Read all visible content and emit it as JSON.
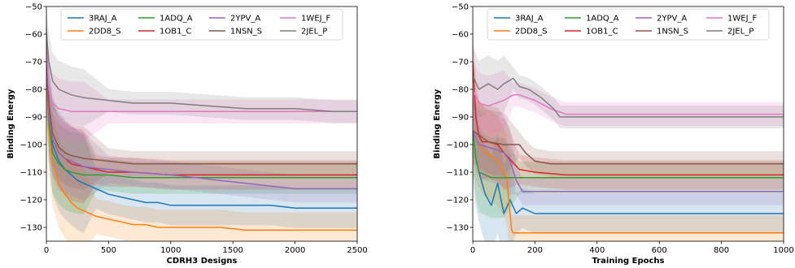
{
  "chart_data": [
    {
      "type": "line",
      "xlabel": "CDRH3 Designs",
      "ylabel": "Binding Energy",
      "xlim": [
        0,
        2500
      ],
      "ylim": [
        -135,
        -50
      ],
      "xticks": [
        0,
        500,
        1000,
        1500,
        2000,
        2500
      ],
      "yticks": [
        -130,
        -120,
        -110,
        -100,
        -90,
        -80,
        -70,
        -60,
        -50
      ],
      "grid": false,
      "legend_position": "top",
      "series": [
        {
          "name": "3RAJ_A",
          "color": "#1f77b4",
          "x": [
            0,
            20,
            50,
            100,
            150,
            200,
            250,
            300,
            400,
            500,
            600,
            700,
            800,
            900,
            1000,
            1200,
            1400,
            1600,
            1800,
            2000,
            2200,
            2500
          ],
          "y": [
            -70,
            -88,
            -100,
            -106,
            -109,
            -111,
            -113,
            -114,
            -116,
            -118,
            -119,
            -120,
            -121,
            -121,
            -122,
            -122,
            -122,
            -122,
            -122,
            -123,
            -123,
            -123
          ]
        },
        {
          "name": "2DD8_S",
          "color": "#ff7f0e",
          "x": [
            0,
            20,
            50,
            100,
            150,
            200,
            250,
            300,
            400,
            500,
            600,
            700,
            800,
            900,
            1000,
            1200,
            1400,
            1600,
            1800,
            2000,
            2200,
            2500
          ],
          "y": [
            -75,
            -95,
            -106,
            -114,
            -118,
            -121,
            -123,
            -124,
            -126,
            -127,
            -128,
            -129,
            -129,
            -130,
            -130,
            -130,
            -130,
            -131,
            -131,
            -131,
            -131,
            -131
          ]
        },
        {
          "name": "1ADQ_A",
          "color": "#2ca02c",
          "x": [
            0,
            20,
            50,
            100,
            150,
            200,
            300,
            400,
            500,
            700,
            1000,
            1500,
            2000,
            2500
          ],
          "y": [
            -70,
            -92,
            -103,
            -107,
            -109,
            -110,
            -111,
            -111,
            -111,
            -112,
            -112,
            -112,
            -112,
            -112
          ]
        },
        {
          "name": "1OB1_C",
          "color": "#d62728",
          "x": [
            0,
            20,
            50,
            100,
            150,
            200,
            300,
            400,
            500,
            700,
            1000,
            1500,
            2000,
            2500
          ],
          "y": [
            -65,
            -90,
            -98,
            -103,
            -105,
            -107,
            -108,
            -109,
            -110,
            -110,
            -111,
            -111,
            -111,
            -111
          ]
        },
        {
          "name": "2YPV_A",
          "color": "#9467bd",
          "x": [
            0,
            20,
            50,
            100,
            150,
            200,
            300,
            500,
            700,
            1000,
            1200,
            1400,
            1600,
            1800,
            2000,
            2200,
            2500
          ],
          "y": [
            -70,
            -90,
            -98,
            -103,
            -105,
            -106,
            -108,
            -109,
            -110,
            -111,
            -112,
            -113,
            -114,
            -115,
            -116,
            -116,
            -116
          ]
        },
        {
          "name": "1NSN_S",
          "color": "#8c564b",
          "x": [
            0,
            20,
            50,
            100,
            150,
            200,
            300,
            500,
            700,
            1000,
            1500,
            2000,
            2500
          ],
          "y": [
            -65,
            -85,
            -96,
            -101,
            -103,
            -104,
            -105,
            -106,
            -107,
            -107,
            -107,
            -107,
            -107
          ]
        },
        {
          "name": "1WEJ_F",
          "color": "#e377c2",
          "x": [
            0,
            20,
            50,
            100,
            200,
            300,
            500,
            700,
            1000,
            1500,
            2000,
            2500
          ],
          "y": [
            -65,
            -80,
            -85,
            -87,
            -88,
            -88,
            -88,
            -88,
            -88,
            -88,
            -88,
            -88
          ]
        },
        {
          "name": "2JEL_P",
          "color": "#7f7f7f",
          "x": [
            0,
            20,
            50,
            100,
            200,
            300,
            500,
            700,
            1000,
            1300,
            1600,
            2000,
            2300,
            2500
          ],
          "y": [
            -60,
            -70,
            -77,
            -80,
            -82,
            -83,
            -84,
            -85,
            -85,
            -86,
            -87,
            -87,
            -88,
            -88
          ]
        }
      ]
    },
    {
      "type": "line",
      "xlabel": "Training Epochs",
      "ylabel": "Binding Energy",
      "xlim": [
        0,
        1000
      ],
      "ylim": [
        -135,
        -50
      ],
      "xticks": [
        0,
        200,
        400,
        600,
        800,
        1000
      ],
      "yticks": [
        -130,
        -120,
        -110,
        -100,
        -90,
        -80,
        -70,
        -60,
        -50
      ],
      "grid": false,
      "legend_position": "top",
      "series": [
        {
          "name": "3RAJ_A",
          "color": "#1f77b4",
          "x": [
            0,
            10,
            20,
            40,
            60,
            80,
            100,
            120,
            140,
            160,
            200,
            300,
            400,
            600,
            800,
            1000
          ],
          "y": [
            -95,
            -105,
            -110,
            -118,
            -122,
            -114,
            -125,
            -120,
            -125,
            -123,
            -125,
            -125,
            -125,
            -125,
            -125,
            -125
          ]
        },
        {
          "name": "2DD8_S",
          "color": "#ff7f0e",
          "x": [
            0,
            20,
            40,
            60,
            80,
            100,
            110,
            120,
            125,
            130,
            200,
            400,
            600,
            800,
            1000
          ],
          "y": [
            -95,
            -100,
            -103,
            -104,
            -106,
            -110,
            -113,
            -125,
            -131,
            -132,
            -132,
            -132,
            -132,
            -132,
            -132
          ]
        },
        {
          "name": "1ADQ_A",
          "color": "#2ca02c",
          "x": [
            0,
            10,
            20,
            40,
            60,
            100,
            150,
            200,
            300,
            400,
            600,
            800,
            1000
          ],
          "y": [
            -95,
            -105,
            -110,
            -111,
            -112,
            -112,
            -112,
            -112,
            -112,
            -112,
            -112,
            -112,
            -112
          ]
        },
        {
          "name": "1OB1_C",
          "color": "#d62728",
          "x": [
            0,
            10,
            20,
            30,
            50,
            80,
            100,
            150,
            200,
            300,
            400,
            600,
            800,
            1000
          ],
          "y": [
            -70,
            -90,
            -97,
            -99,
            -99,
            -100,
            -103,
            -109,
            -110,
            -111,
            -111,
            -111,
            -111,
            -111
          ]
        },
        {
          "name": "2YPV_A",
          "color": "#9467bd",
          "x": [
            0,
            20,
            50,
            80,
            100,
            120,
            140,
            160,
            200,
            400,
            600,
            800,
            1000
          ],
          "y": [
            -95,
            -100,
            -101,
            -102,
            -103,
            -106,
            -113,
            -117,
            -117,
            -117,
            -117,
            -117,
            -117
          ]
        },
        {
          "name": "1NSN_S",
          "color": "#8c564b",
          "x": [
            0,
            50,
            100,
            150,
            170,
            200,
            250,
            300,
            400,
            600,
            800,
            1000
          ],
          "y": [
            -95,
            -99,
            -100,
            -100,
            -103,
            -106,
            -107,
            -107,
            -107,
            -107,
            -107,
            -107
          ]
        },
        {
          "name": "1WEJ_F",
          "color": "#e377c2",
          "x": [
            0,
            20,
            50,
            100,
            130,
            150,
            200,
            250,
            300,
            400,
            600,
            800,
            1000
          ],
          "y": [
            -80,
            -85,
            -86,
            -84,
            -82,
            -82,
            -84,
            -87,
            -89,
            -89,
            -89,
            -89,
            -89
          ]
        },
        {
          "name": "2JEL_P",
          "color": "#7f7f7f",
          "x": [
            0,
            20,
            50,
            80,
            100,
            130,
            150,
            180,
            220,
            260,
            280,
            300,
            400,
            600,
            800,
            1000
          ],
          "y": [
            -75,
            -80,
            -78,
            -80,
            -78,
            -76,
            -79,
            -80,
            -83,
            -87,
            -90,
            -90,
            -90,
            -90,
            -90,
            -90
          ]
        }
      ]
    }
  ]
}
